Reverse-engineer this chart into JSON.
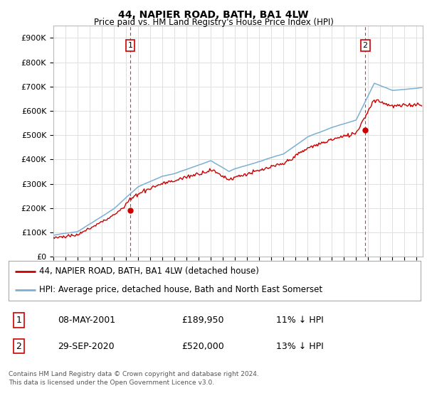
{
  "title": "44, NAPIER ROAD, BATH, BA1 4LW",
  "subtitle": "Price paid vs. HM Land Registry's House Price Index (HPI)",
  "ylabel_ticks": [
    "£0",
    "£100K",
    "£200K",
    "£300K",
    "£400K",
    "£500K",
    "£600K",
    "£700K",
    "£800K",
    "£900K"
  ],
  "ytick_values": [
    0,
    100000,
    200000,
    300000,
    400000,
    500000,
    600000,
    700000,
    800000,
    900000
  ],
  "ylim": [
    0,
    950000
  ],
  "xlim_start": 1995.0,
  "xlim_end": 2025.5,
  "marker1_x": 2001.35,
  "marker1_y": 189950,
  "marker1_label": "1",
  "marker2_x": 2020.75,
  "marker2_y": 520000,
  "marker2_label": "2",
  "legend_line1": "44, NAPIER ROAD, BATH, BA1 4LW (detached house)",
  "legend_line2": "HPI: Average price, detached house, Bath and North East Somerset",
  "table_row1": [
    "1",
    "08-MAY-2001",
    "£189,950",
    "11% ↓ HPI"
  ],
  "table_row2": [
    "2",
    "29-SEP-2020",
    "£520,000",
    "13% ↓ HPI"
  ],
  "footer": "Contains HM Land Registry data © Crown copyright and database right 2024.\nThis data is licensed under the Open Government Licence v3.0.",
  "price_color": "#cc0000",
  "hpi_color": "#7ab0d4",
  "background_color": "#ffffff",
  "grid_color": "#e0e0e0"
}
